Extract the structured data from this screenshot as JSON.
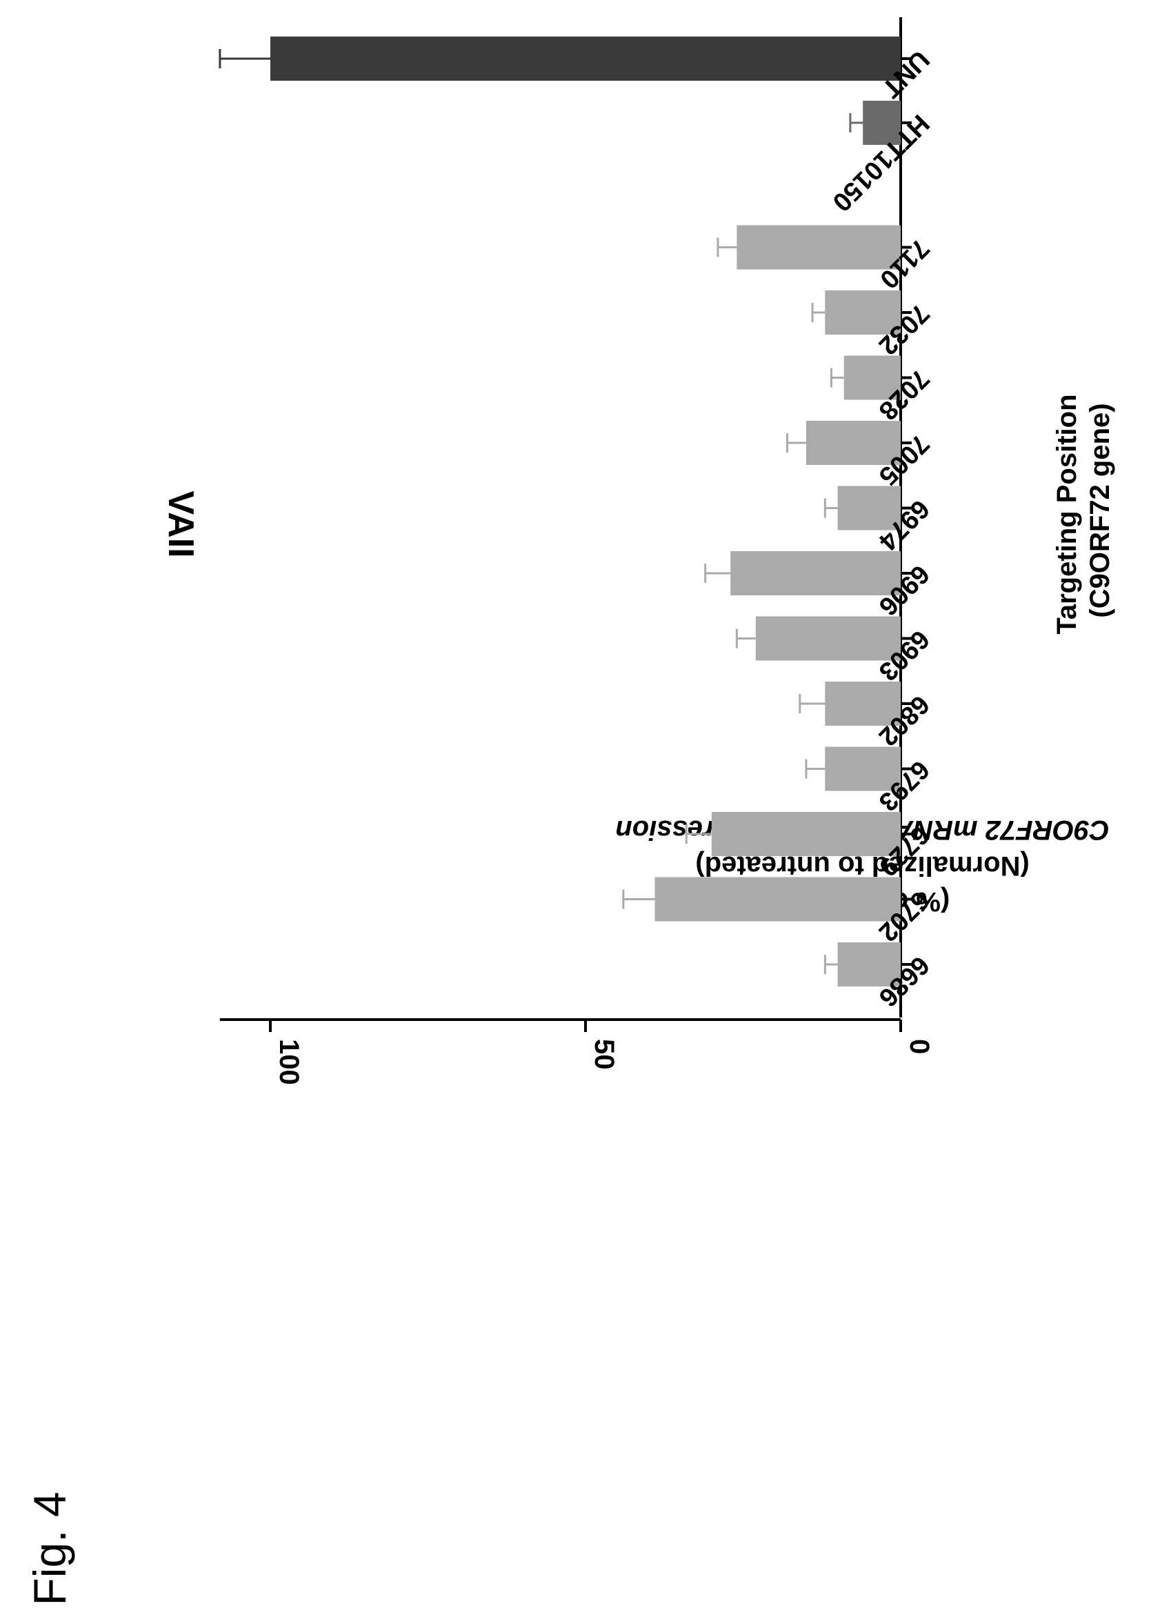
{
  "figure_label": "Fig. 4",
  "chart_data": {
    "type": "bar",
    "title": "VAII",
    "xlabel_lines": [
      "Targeting Position",
      "(C9ORF72 gene)"
    ],
    "ylabel_lines": [
      "C9ORF72 mRNA Reporter Expression",
      "(Normalized to untreated)",
      "(% of Control)"
    ],
    "ylim": [
      0,
      108
    ],
    "yticks": [
      {
        "value": 0,
        "label": "0"
      },
      {
        "value": 50,
        "label": "50"
      },
      {
        "value": 100,
        "label": "100"
      }
    ],
    "grid": false,
    "legend": "none",
    "colors": {
      "treated": "#aaaaaa",
      "hit": "#6a6a6a",
      "control": "#3a3a3a"
    },
    "categories": [
      "6686",
      "6702",
      "6729",
      "6793",
      "6802",
      "6903",
      "6906",
      "6974",
      "7005",
      "7028",
      "7032",
      "7110",
      "HTT10150",
      "UNT"
    ],
    "values": [
      10,
      39,
      30,
      12,
      12,
      23,
      27,
      10,
      15,
      9,
      12,
      26,
      6,
      100
    ],
    "errors": [
      2,
      5,
      4,
      3,
      4,
      3,
      4,
      2,
      3,
      2,
      2,
      3,
      2,
      8
    ],
    "bar_style": [
      "treated",
      "treated",
      "treated",
      "treated",
      "treated",
      "treated",
      "treated",
      "treated",
      "treated",
      "treated",
      "treated",
      "treated",
      "hit",
      "control"
    ]
  }
}
